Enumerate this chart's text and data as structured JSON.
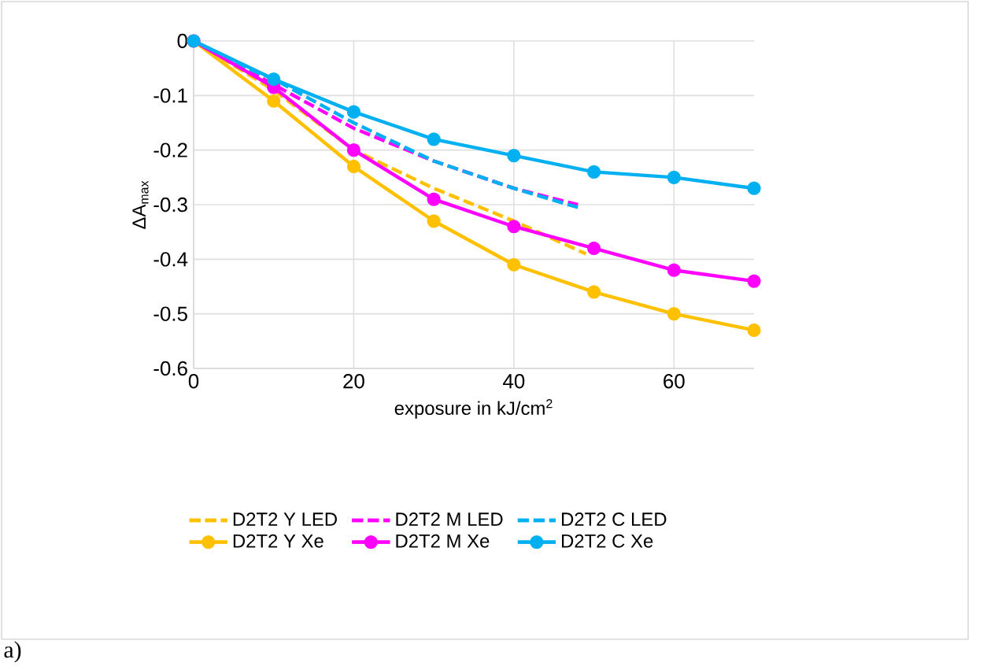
{
  "chart_data": {
    "type": "line",
    "xlabel": "exposure in kJ/cm$^{2}$",
    "ylabel": "ΔA$_{max}$",
    "xlim": [
      0,
      70
    ],
    "ylim": [
      -0.6,
      0
    ],
    "xticks": [
      0,
      20,
      40,
      60
    ],
    "yticks": [
      -0.6,
      -0.5,
      -0.4,
      -0.3,
      -0.2,
      -0.1,
      0
    ],
    "grid": true,
    "legend": "bottom",
    "annotations": [
      "a)"
    ],
    "series": [
      {
        "name": "D2T2 Y LED",
        "color": "#ffc000",
        "line_style": "dashed",
        "marker": "none",
        "x": [
          0,
          10,
          20,
          30,
          40,
          49
        ],
        "values": [
          0,
          -0.09,
          -0.2,
          -0.27,
          -0.33,
          -0.39
        ]
      },
      {
        "name": "D2T2 M LED",
        "color": "#ff00ff",
        "line_style": "dashed",
        "marker": "none",
        "x": [
          0,
          10,
          20,
          30,
          40,
          48
        ],
        "values": [
          0,
          -0.08,
          -0.16,
          -0.22,
          -0.27,
          -0.3
        ]
      },
      {
        "name": "D2T2 C LED",
        "color": "#00b0f0",
        "line_style": "dashed",
        "marker": "none",
        "x": [
          0,
          5,
          10,
          20,
          30,
          40,
          48
        ],
        "values": [
          0,
          -0.04,
          -0.07,
          -0.15,
          -0.22,
          -0.27,
          -0.305
        ]
      },
      {
        "name": "D2T2 Y Xe",
        "color": "#ffc000",
        "line_style": "solid",
        "marker": "circle",
        "x": [
          0,
          10,
          20,
          30,
          40,
          50,
          60,
          70
        ],
        "values": [
          0,
          -0.11,
          -0.23,
          -0.33,
          -0.41,
          -0.46,
          -0.5,
          -0.53
        ]
      },
      {
        "name": "D2T2 M Xe",
        "color": "#ff00ff",
        "line_style": "solid",
        "marker": "circle",
        "x": [
          0,
          10,
          20,
          30,
          40,
          50,
          60,
          70
        ],
        "values": [
          0,
          -0.085,
          -0.2,
          -0.29,
          -0.34,
          -0.38,
          -0.42,
          -0.44
        ]
      },
      {
        "name": "D2T2 C Xe",
        "color": "#00b0f0",
        "line_style": "solid",
        "marker": "circle",
        "x": [
          0,
          10,
          20,
          30,
          40,
          50,
          60,
          70
        ],
        "values": [
          0,
          -0.07,
          -0.13,
          -0.18,
          -0.21,
          -0.24,
          -0.25,
          -0.27
        ]
      }
    ]
  }
}
